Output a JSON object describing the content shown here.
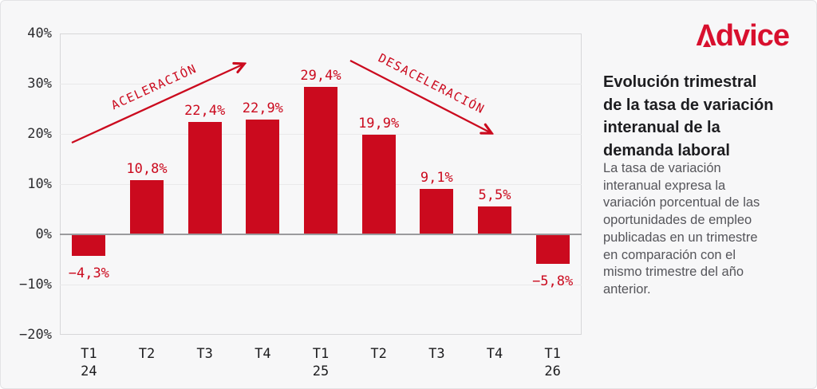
{
  "frame": {
    "background": "#f7f7f8",
    "border_color": "#e3e3e6"
  },
  "brand": {
    "name": "Advice",
    "glyph": "Λ",
    "rest": "dvice",
    "color": "#d8102e"
  },
  "panel": {
    "title_lines": [
      "Evolución trimestral",
      "de la tasa de variación",
      "interanual de la",
      "demanda laboral"
    ],
    "body_lines": [
      "La tasa de variación",
      "interanual expresa la",
      "variación porcentual de las",
      "oportunidades de empleo",
      "publicadas en un trimestre",
      "en comparación con el",
      "mismo trimestre del año",
      "anterior."
    ]
  },
  "chart_data": {
    "type": "bar",
    "title": "Evolución trimestral de la tasa de variación interanual de la demanda laboral",
    "categories": [
      "T1\n24",
      "T2",
      "T3",
      "T4",
      "T1\n25",
      "T2",
      "T3",
      "T4",
      "T1\n26"
    ],
    "values": [
      -4.3,
      10.8,
      22.4,
      22.9,
      29.4,
      19.9,
      9.1,
      5.5,
      -5.8
    ],
    "value_labels": [
      "−4,3%",
      "10,8%",
      "22,4%",
      "22,9%",
      "29,4%",
      "19,9%",
      "9,1%",
      "5,5%",
      "−5,8%"
    ],
    "xlabel": "",
    "ylabel": "",
    "ylim": [
      -20,
      40
    ],
    "yticks": [
      40,
      30,
      20,
      10,
      0,
      -10,
      -20
    ],
    "ytick_labels": [
      "40%",
      "30%",
      "20%",
      "10%",
      "0%",
      "−10%",
      "−20%"
    ],
    "grid": true,
    "bar_color": "#cb0a1e",
    "label_color": "#cb0a1e",
    "axis_color": "#9b9b9e",
    "gridline_color": "#e9e9ea",
    "annotations": [
      {
        "label": "ACELERACIÓN",
        "direction": "up"
      },
      {
        "label": "DESACELERACIÓN",
        "direction": "down"
      }
    ]
  }
}
